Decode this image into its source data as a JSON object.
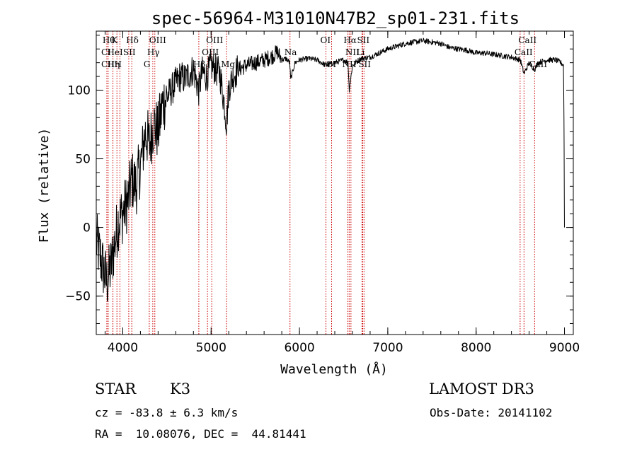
{
  "chart_data": {
    "type": "line",
    "title": "spec-56964-M31010N47B2_sp01-231.fits",
    "xlabel": "Wavelength (Å)",
    "ylabel": "Flux (relative)",
    "xlim": [
      3700,
      9100
    ],
    "ylim": [
      -78,
      143
    ],
    "xticks": [
      4000,
      5000,
      6000,
      7000,
      8000,
      9000
    ],
    "yticks": [
      -50,
      0,
      50,
      100
    ],
    "spectrum_anchors": {
      "x": [
        3700,
        3760,
        3820,
        3860,
        3900,
        3950,
        4000,
        4060,
        4100,
        4150,
        4200,
        4260,
        4300,
        4350,
        4400,
        4450,
        4500,
        4550,
        4600,
        4650,
        4700,
        4750,
        4800,
        4860,
        4900,
        4950,
        5000,
        5050,
        5100,
        5150,
        5175,
        5200,
        5250,
        5300,
        5400,
        5500,
        5600,
        5700,
        5750,
        5800,
        5850,
        5890,
        5900,
        5950,
        6000,
        6100,
        6200,
        6300,
        6400,
        6500,
        6550,
        6563,
        6600,
        6650,
        6700,
        6800,
        6900,
        7000,
        7100,
        7200,
        7300,
        7400,
        7500,
        7600,
        7700,
        7800,
        7900,
        8000,
        8100,
        8200,
        8300,
        8400,
        8500,
        8542,
        8600,
        8662,
        8700,
        8800,
        8900,
        8960,
        8990,
        8996,
        9000
      ],
      "y": [
        -10,
        -25,
        -40,
        -30,
        -15,
        5,
        10,
        20,
        35,
        30,
        45,
        70,
        60,
        75,
        70,
        90,
        95,
        100,
        105,
        110,
        108,
        112,
        115,
        100,
        113,
        110,
        118,
        115,
        112,
        90,
        75,
        102,
        110,
        115,
        118,
        120,
        122,
        125,
        128,
        122,
        123,
        120,
        108,
        120,
        122,
        123,
        122,
        118,
        120,
        122,
        120,
        100,
        118,
        121,
        123,
        124,
        127,
        130,
        132,
        134,
        135,
        136,
        135,
        134,
        131,
        130,
        129,
        127,
        127,
        126,
        125,
        124,
        122,
        112,
        120,
        115,
        120,
        122,
        122,
        120,
        118,
        60,
        0
      ]
    },
    "spectral_lines": [
      {
        "wavelength": 3835,
        "label": "Hθ",
        "row": 1
      },
      {
        "wavelength": 3820,
        "label": "CI",
        "row": 2
      },
      {
        "wavelength": 3820,
        "label": "CII",
        "row": 3
      },
      {
        "wavelength": 3889,
        "label": "Hη",
        "row": 3
      },
      {
        "wavelength": 3934,
        "label": "K",
        "row": 1
      },
      {
        "wavelength": 3888,
        "label": "HeI",
        "row": 2
      },
      {
        "wavelength": 3968,
        "label": "H",
        "row": 3
      },
      {
        "wavelength": 4068,
        "label": "SII",
        "row": 2
      },
      {
        "wavelength": 4102,
        "label": "Hδ",
        "row": 1
      },
      {
        "wavelength": 4300,
        "label": "G",
        "row": 3
      },
      {
        "wavelength": 4340,
        "label": "Hγ",
        "row": 2
      },
      {
        "wavelength": 4363,
        "label": "OIII",
        "row": 1
      },
      {
        "wavelength": 4861,
        "label": "Hβ",
        "row": 3
      },
      {
        "wavelength": 4959,
        "label": "OIII",
        "row": 2
      },
      {
        "wavelength": 5007,
        "label": "OIII",
        "row": 1
      },
      {
        "wavelength": 5175,
        "label": "Mg",
        "row": 3
      },
      {
        "wavelength": 5893,
        "label": "Na",
        "row": 2
      },
      {
        "wavelength": 6300,
        "label": "OI",
        "row": 1
      },
      {
        "wavelength": 6364,
        "label": "OI",
        "row": 3
      },
      {
        "wavelength": 6548,
        "label": "NII",
        "row": 3
      },
      {
        "wavelength": 6563,
        "label": "Hα",
        "row": 1
      },
      {
        "wavelength": 6583,
        "label": "NII",
        "row": 2
      },
      {
        "wavelength": 6708,
        "label": "Li",
        "row": 2
      },
      {
        "wavelength": 6716,
        "label": "SII",
        "row": 1
      },
      {
        "wavelength": 6731,
        "label": "SII",
        "row": 3
      },
      {
        "wavelength": 8498,
        "label": "CaII",
        "row": 2
      },
      {
        "wavelength": 8542,
        "label": "CaII",
        "row": 1
      },
      {
        "wavelength": 8662,
        "label": "CaII",
        "row": 3
      }
    ]
  },
  "info": {
    "class_label": "STAR",
    "subclass": "K3",
    "survey": "LAMOST DR3",
    "cz_text": "cz = -83.8 ± 6.3 km/s",
    "obs_date_text": "Obs-Date: 20141102",
    "radec_text": "RA =  10.08076, DEC =  44.81441"
  },
  "colors": {
    "line_marker": "#cc0000",
    "spectrum": "#000000"
  }
}
